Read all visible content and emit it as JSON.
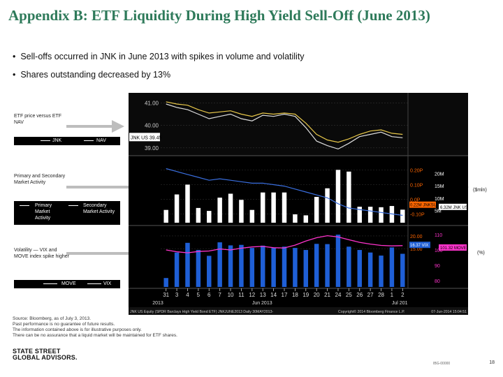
{
  "title": "Appendix B: ETF Liquidity During High Yield Sell-Off (June 2013)",
  "bullets": [
    "Sell-offs occurred in JNK in June 2013 with spikes in volume and volatility",
    "Shares outstanding decreased by 13%"
  ],
  "panels": {
    "p1": {
      "label": "ETF price versus ETF NAV",
      "legend": [
        "JNK",
        "NAV"
      ]
    },
    "p2": {
      "label": "Primary and Secondary Market Activity",
      "legend": [
        "Primary Market Activity",
        "Secondary Market Activity"
      ],
      "unit": "($mln)"
    },
    "p3": {
      "label": "Volatility — VIX and MOVE index spike higher",
      "legend": [
        "MOVE",
        "VIX"
      ],
      "unit": "(%)"
    }
  },
  "source": [
    "Source: Bloomberg, as of July 3, 2013.",
    "Past performance is no guarantee of future results.",
    "The information contained above is for illustrative purposes only.",
    "There can be no assurance that a liquid market will be maintained for ETF shares."
  ],
  "logo": [
    "STATE STREET",
    "GLOBAL ADVISORS."
  ],
  "page_number": "18",
  "footer_code": "IBG-00000",
  "colors": {
    "title": "#2e7a5a",
    "nav": "#e8c84a",
    "jnk_line": "#dddddd",
    "primary": "#3a6fe0",
    "move": "#ff33cc",
    "vix": "#2e6be6",
    "bars_white": "#ffffff",
    "bars_blue": "#1f5fd6"
  },
  "chart_data": {
    "type": "line",
    "title": "",
    "x_ticks": [
      "31",
      "3",
      "4",
      "5",
      "6",
      "7",
      "10",
      "11",
      "12",
      "13",
      "14",
      "17",
      "18",
      "19",
      "20",
      "21",
      "24",
      "25",
      "26",
      "27",
      "28",
      "1",
      "2"
    ],
    "x_labels": [
      "2013",
      "Jun 2013",
      "Jul 201"
    ],
    "footer": [
      "JNK US Equity (SPDR Barclays High Yield Bond ETF) JNKJUNE2013 Daily 30MAY2013-",
      "Copyright© 2014 Bloomberg Finance L.P.",
      "07-Jun-2014 15:04:51"
    ],
    "price_panel": {
      "yticks": [
        "41.00",
        "40.00",
        "39.00"
      ],
      "ylim": [
        38.9,
        41.2
      ],
      "tag": "JNK US 39.45",
      "series": [
        {
          "name": "JNK",
          "values": [
            40.95,
            40.8,
            40.7,
            40.5,
            40.3,
            40.4,
            40.5,
            40.3,
            40.2,
            40.45,
            40.4,
            40.5,
            40.4,
            39.9,
            39.3,
            39.1,
            38.95,
            39.2,
            39.5,
            39.6,
            39.7,
            39.5,
            39.45
          ]
        },
        {
          "name": "NAV",
          "values": [
            41.05,
            40.95,
            40.9,
            40.7,
            40.55,
            40.6,
            40.65,
            40.5,
            40.4,
            40.55,
            40.5,
            40.55,
            40.5,
            40.1,
            39.6,
            39.35,
            39.25,
            39.4,
            39.6,
            39.75,
            39.8,
            39.65,
            39.6
          ]
        }
      ]
    },
    "flow_panel": {
      "yticks_left": [
        "0.20P",
        "0.10P",
        "0.0P",
        "-0.10P"
      ],
      "yticks_right": [
        "20M",
        "15M",
        "10M",
        "5M"
      ],
      "tags": [
        "0.22M JNKSUS",
        "6.32M JNK US"
      ],
      "bars": [
        5.2,
        11.5,
        15.5,
        6.0,
        4.8,
        10.2,
        11.8,
        9.3,
        5.2,
        12.3,
        12.3,
        12.3,
        3.4,
        3.0,
        10.5,
        14.0,
        21.5,
        20.8,
        6.5,
        6.5,
        6.3,
        6.8,
        5.3
      ],
      "line": [
        0.21,
        0.19,
        0.17,
        0.15,
        0.13,
        0.14,
        0.13,
        0.12,
        0.11,
        0.11,
        0.1,
        0.09,
        0.07,
        0.05,
        0.03,
        0.01,
        -0.03,
        -0.06,
        -0.07,
        -0.08,
        -0.09,
        -0.1,
        -0.11
      ]
    },
    "vol_panel": {
      "yticks_left": [
        "20.00",
        "15.00"
      ],
      "yticks_right": [
        "110",
        "100",
        "90",
        "80"
      ],
      "tags": [
        "16.37 VIX",
        "101.32 MOVE"
      ],
      "bars_vix": [
        3.5,
        13.5,
        17.3,
        14.5,
        12.2,
        17.5,
        16.3,
        16.5,
        15.3,
        16.2,
        15.3,
        15.8,
        15.3,
        14.5,
        16.9,
        16.8,
        20.5,
        15.8,
        14.5,
        13.5,
        12.3,
        15.5,
        13.0
      ],
      "line_move": [
        14.5,
        13.8,
        13.4,
        13.9,
        14.1,
        14.9,
        14.5,
        15.2,
        15.7,
        15.9,
        15.4,
        15.3,
        16.4,
        18.0,
        19.3,
        20.1,
        19.6,
        18.5,
        17.5,
        16.8,
        16.3,
        16.1,
        16.2
      ]
    }
  }
}
